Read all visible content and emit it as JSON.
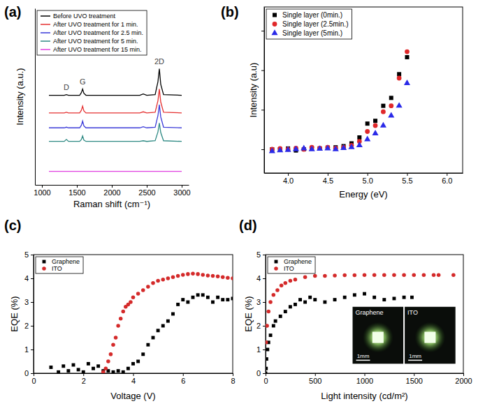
{
  "chart_data": [
    {
      "type": "line",
      "title": "(a)",
      "x_label": "Raman shift (cm⁻¹)",
      "y_label": "Intensity (a.u.)",
      "x": [
        1100,
        1320,
        1350,
        1380,
        1540,
        1565,
        1582,
        1600,
        1630,
        2400,
        2450,
        2500,
        2620,
        2660,
        2680,
        2700,
        2740,
        3000
      ],
      "series": [
        {
          "name": "Before UVO treatment",
          "color": "#000000",
          "values": [
            6.6,
            6.6,
            6.65,
            6.6,
            6.6,
            6.8,
            7.06,
            6.75,
            6.6,
            6.6,
            6.7,
            6.6,
            6.65,
            7.6,
            8.55,
            7.4,
            6.65,
            6.6
          ]
        },
        {
          "name": "After UVO treatment for 1 min.",
          "color": "#e53030",
          "values": [
            5.3,
            5.3,
            5.35,
            5.3,
            5.3,
            5.5,
            5.8,
            5.45,
            5.3,
            5.3,
            5.38,
            5.3,
            5.35,
            6.2,
            7.06,
            6.1,
            5.35,
            5.3
          ]
        },
        {
          "name": "After UVO treatment for 2.5 min.",
          "color": "#3a3ad8",
          "values": [
            4.2,
            4.2,
            4.25,
            4.2,
            4.2,
            4.4,
            4.7,
            4.35,
            4.2,
            4.2,
            4.28,
            4.2,
            4.25,
            5.1,
            5.9,
            5.0,
            4.25,
            4.2
          ]
        },
        {
          "name": "After UVO treatment for 5 min.",
          "color": "#2f8a84",
          "values": [
            3.2,
            3.2,
            3.35,
            3.2,
            3.2,
            3.35,
            3.6,
            3.3,
            3.2,
            3.2,
            3.25,
            3.2,
            3.25,
            3.9,
            4.55,
            3.85,
            3.25,
            3.2
          ]
        },
        {
          "name": "After UVO treatment for 15 min.",
          "color": "#e040e0",
          "values": [
            1.0,
            1.0,
            1.0,
            1.0,
            1.0,
            1.0,
            1.0,
            1.0,
            1.0,
            1.0,
            1.0,
            1.0,
            1.0,
            1.0,
            1.0,
            1.0,
            1.0,
            1.0
          ]
        }
      ],
      "xlim": [
        900,
        3100
      ],
      "xticks": [
        1000,
        1500,
        2000,
        2500,
        3000
      ],
      "ylim": [
        0,
        13
      ],
      "tick_labels": "x",
      "legend": "upper left",
      "annotations": [
        {
          "text": "D",
          "x": 1350,
          "y": 7.0
        },
        {
          "text": "G",
          "x": 1582,
          "y": 7.4
        },
        {
          "text": "2D",
          "x": 2680,
          "y": 8.9
        }
      ]
    },
    {
      "type": "scatter",
      "title": "(b)",
      "x_label": "Energy (eV)",
      "y_label": "Intensity (a.u)",
      "x": [
        3.8,
        3.9,
        4.0,
        4.1,
        4.2,
        4.3,
        4.4,
        4.5,
        4.6,
        4.7,
        4.8,
        4.9,
        5.0,
        5.1,
        5.2,
        5.3,
        5.4,
        5.5
      ],
      "series": [
        {
          "name": "Single layer (0min.)",
          "color": "#000000",
          "marker": "square",
          "values": [
            0,
            0,
            0.02,
            -0.03,
            0,
            0.03,
            0.02,
            0.04,
            0.05,
            0.08,
            0.15,
            0.3,
            0.65,
            0.72,
            1.1,
            1.3,
            1.9,
            2.33
          ]
        },
        {
          "name": "Single layer (2.5min.)",
          "color": "#e0282a",
          "marker": "circle",
          "values": [
            0,
            0.02,
            0,
            0.03,
            0,
            0.05,
            0.03,
            0.05,
            0.03,
            0.05,
            0.1,
            0.2,
            0.45,
            0.6,
            0.95,
            1.1,
            1.8,
            2.47
          ]
        },
        {
          "name": "Single layer (5min.)",
          "color": "#2a2ae8",
          "marker": "triangle",
          "values": [
            -0.05,
            -0.03,
            -0.02,
            0,
            0.02,
            0,
            0.01,
            0.02,
            0,
            0.03,
            0.05,
            0.1,
            0.25,
            0.4,
            0.6,
            0.85,
            1.1,
            1.67
          ]
        }
      ],
      "xlim": [
        3.7,
        6.2
      ],
      "xticks": [
        {
          "value": 4.0,
          "label": "4.0"
        },
        {
          "value": 4.5,
          "label": "4.5"
        },
        {
          "value": 5.0,
          "label": "5.0"
        },
        {
          "value": 5.5,
          "label": "5.5"
        },
        {
          "value": 6.0,
          "label": "6.0"
        }
      ],
      "ylim": [
        -0.6,
        3.6
      ],
      "yticks": [
        0,
        1,
        2,
        3
      ],
      "tick_labels": "x",
      "legend": "upper left"
    },
    {
      "type": "scatter",
      "title": "(c)",
      "x_label": "Voltage (V)",
      "y_label": "EQE (%)",
      "series": [
        {
          "name": "Graphene",
          "color": "#000000",
          "marker": "square",
          "x": [
            0.7,
            1.0,
            1.2,
            1.4,
            1.6,
            1.8,
            2.0,
            2.2,
            2.4,
            2.6,
            2.8,
            3.0,
            3.2,
            3.4,
            3.6,
            3.8,
            4.0,
            4.2,
            4.4,
            4.6,
            4.8,
            5.0,
            5.2,
            5.4,
            5.6,
            5.8,
            6.0,
            6.2,
            6.4,
            6.6,
            6.8,
            7.0,
            7.2,
            7.4,
            7.6,
            7.8,
            8.0
          ],
          "values": [
            0.25,
            0.05,
            0.3,
            0.1,
            0.35,
            0.15,
            0.05,
            0.4,
            0.2,
            0.3,
            0.1,
            0.1,
            0.05,
            0.1,
            0.05,
            0.2,
            0.4,
            0.5,
            0.8,
            1.2,
            1.5,
            1.8,
            2.0,
            2.2,
            2.5,
            2.9,
            3.1,
            3.0,
            3.2,
            3.3,
            3.3,
            3.2,
            3.0,
            3.2,
            3.1,
            3.1,
            3.15
          ]
        },
        {
          "name": "ITO",
          "color": "#d42a2a",
          "marker": "circle",
          "x": [
            2.8,
            2.9,
            3.0,
            3.1,
            3.2,
            3.3,
            3.4,
            3.5,
            3.6,
            3.7,
            3.8,
            3.9,
            4.0,
            4.2,
            4.4,
            4.6,
            4.8,
            5.0,
            5.2,
            5.4,
            5.6,
            5.8,
            6.0,
            6.2,
            6.4,
            6.6,
            6.8,
            7.0,
            7.2,
            7.4,
            7.6,
            7.8,
            8.0
          ],
          "values": [
            0.05,
            0.2,
            0.5,
            0.8,
            1.2,
            1.5,
            2.0,
            2.3,
            2.6,
            2.8,
            2.9,
            3.0,
            3.2,
            3.35,
            3.5,
            3.65,
            3.8,
            3.9,
            3.95,
            4.0,
            4.05,
            4.1,
            4.15,
            4.18,
            4.2,
            4.18,
            4.15,
            4.12,
            4.1,
            4.08,
            4.05,
            4.02,
            4.0
          ]
        }
      ],
      "xlim": [
        0,
        8
      ],
      "xticks": [
        0,
        2,
        4,
        6,
        8
      ],
      "ylim": [
        0,
        5
      ],
      "yticks": [
        0,
        1,
        2,
        3,
        4,
        5
      ],
      "legend": "upper left"
    },
    {
      "type": "scatter",
      "title": "(d)",
      "x_label": "Light intensity (cd/m²)",
      "y_label": "EQE (%)",
      "series": [
        {
          "name": "Graphene",
          "color": "#000000",
          "marker": "square",
          "x": [
            0,
            5,
            10,
            20,
            30,
            50,
            80,
            100,
            150,
            200,
            250,
            300,
            350,
            400,
            450,
            500,
            600,
            700,
            800,
            900,
            1000,
            1100,
            1200,
            1300,
            1400,
            1480
          ],
          "values": [
            0,
            0.2,
            0.6,
            1.0,
            1.3,
            1.6,
            2.0,
            2.2,
            2.4,
            2.6,
            2.8,
            2.9,
            3.1,
            3.0,
            3.2,
            3.1,
            3.0,
            3.1,
            3.2,
            3.3,
            3.35,
            3.2,
            3.1,
            3.15,
            3.2,
            3.2
          ]
        },
        {
          "name": "ITO",
          "color": "#d42a2a",
          "marker": "circle",
          "x": [
            5,
            15,
            30,
            50,
            80,
            120,
            160,
            200,
            250,
            300,
            400,
            500,
            600,
            700,
            800,
            900,
            1000,
            1100,
            1200,
            1300,
            1400,
            1500,
            1600,
            1700,
            1750,
            1900
          ],
          "values": [
            1.3,
            2.0,
            2.6,
            3.0,
            3.3,
            3.5,
            3.7,
            3.8,
            3.9,
            3.95,
            4.05,
            4.1,
            4.1,
            4.12,
            4.13,
            4.13,
            4.14,
            4.14,
            4.14,
            4.14,
            4.14,
            4.14,
            4.14,
            4.14,
            4.14,
            4.14
          ]
        }
      ],
      "xlim": [
        0,
        2000
      ],
      "xticks": [
        0,
        500,
        1000,
        1500,
        2000
      ],
      "ylim": [
        0,
        5
      ],
      "yticks": [
        0,
        1,
        2,
        3,
        4,
        5
      ],
      "legend": "upper left",
      "inset": [
        {
          "label": "Graphene",
          "scale_bar": "1mm"
        },
        {
          "label": "ITO",
          "scale_bar": "1mm"
        }
      ]
    }
  ]
}
